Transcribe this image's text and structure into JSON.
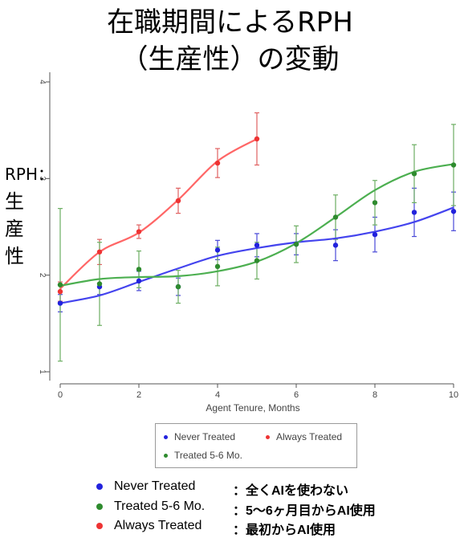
{
  "title": {
    "line1": "在職期間によるRPH",
    "line2": "（生産性）の変動"
  },
  "y_axis_side_label": {
    "line1": "RPH：",
    "line2": "生産",
    "line3": "性"
  },
  "colors": {
    "never": "#2222dd",
    "always": "#ee3333",
    "treated": "#2e8b2e",
    "never_line": "#4444ee",
    "always_line": "#ff6666",
    "treated_line": "#4caf50",
    "axis": "#555555"
  },
  "legend": {
    "never": "Never Treated",
    "always": "Always Treated",
    "treated": "Treated 5-6 Mo."
  },
  "annotations": [
    {
      "series": "never",
      "label": "Never Treated",
      "desc": "：全くAIを使わない"
    },
    {
      "series": "treated",
      "label": "Treated 5-6 Mo.",
      "desc": "：5～6ヶ月目からAI使用"
    },
    {
      "series": "always",
      "label": "Always Treated",
      "desc": "：最初からAI使用"
    }
  ],
  "chart_data": {
    "type": "line",
    "xlabel": "Agent Tenure, Months",
    "ylabel": "",
    "xlim": [
      0,
      10
    ],
    "ylim": [
      1,
      4
    ],
    "x_ticks": [
      "0",
      "2",
      "4",
      "6",
      "8",
      "10"
    ],
    "y_ticks": [
      "1",
      "2",
      "3",
      "4"
    ],
    "grid": false,
    "legend_position": "bottom",
    "series": [
      {
        "name": "Never Treated",
        "key": "never",
        "x": [
          0,
          1,
          2,
          3,
          4,
          5,
          6,
          7,
          8,
          9,
          10
        ],
        "y": [
          1.71,
          1.88,
          1.94,
          1.88,
          2.26,
          2.31,
          2.32,
          2.31,
          2.42,
          2.65,
          2.66
        ],
        "err": [
          0.09,
          0.08,
          0.1,
          0.09,
          0.1,
          0.12,
          0.11,
          0.16,
          0.18,
          0.25,
          0.2
        ],
        "fit": [
          1.71,
          1.79,
          1.93,
          2.07,
          2.2,
          2.28,
          2.34,
          2.38,
          2.45,
          2.55,
          2.7
        ]
      },
      {
        "name": "Always Treated",
        "key": "always",
        "x": [
          0,
          1,
          2,
          3,
          4,
          5
        ],
        "y": [
          1.83,
          2.24,
          2.45,
          2.77,
          3.16,
          3.41
        ],
        "err": [
          0.1,
          0.13,
          0.07,
          0.13,
          0.15,
          0.27
        ],
        "fit": [
          1.86,
          2.24,
          2.44,
          2.78,
          3.18,
          3.41
        ]
      },
      {
        "name": "Treated 5-6 Mo.",
        "key": "treated",
        "x": [
          0,
          1,
          2,
          3,
          4,
          5,
          6,
          7,
          8,
          9,
          10
        ],
        "y": [
          1.9,
          1.91,
          2.06,
          1.88,
          2.09,
          2.15,
          2.32,
          2.6,
          2.75,
          3.05,
          3.14
        ],
        "err": [
          0.79,
          0.43,
          0.19,
          0.17,
          0.2,
          0.19,
          0.19,
          0.23,
          0.23,
          0.3,
          0.42
        ],
        "fit": [
          1.89,
          1.96,
          1.98,
          1.99,
          2.04,
          2.14,
          2.33,
          2.6,
          2.88,
          3.07,
          3.15
        ]
      }
    ]
  }
}
